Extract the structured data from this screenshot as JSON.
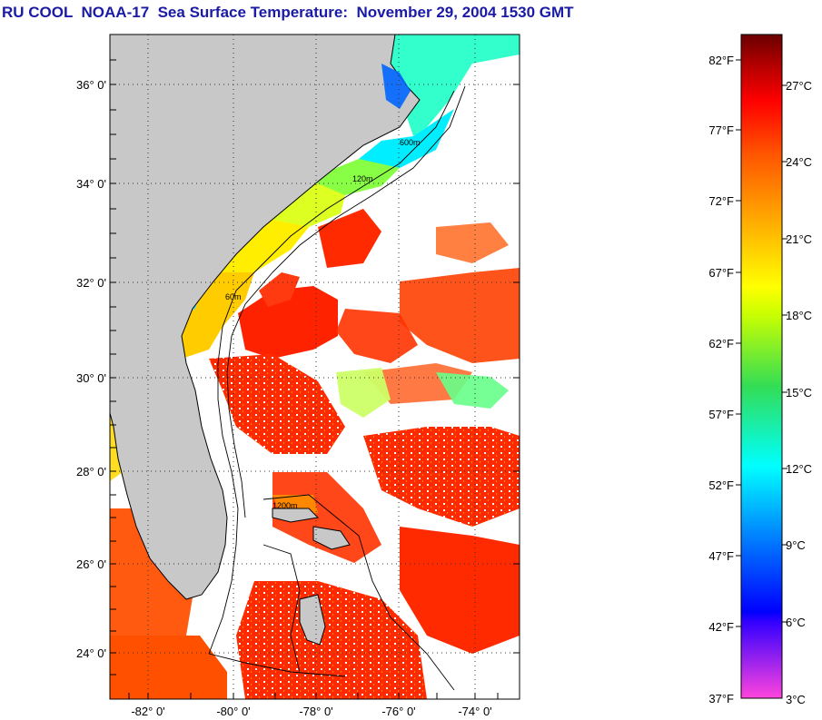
{
  "title": "RU COOL  NOAA-17  Sea Surface Temperature:  November 29, 2004 1530 GMT",
  "map": {
    "lat_labels": [
      "36° 0'",
      "34° 0'",
      "32° 0'",
      "30° 0'",
      "28° 0'",
      "26° 0'",
      "24° 0'"
    ],
    "lon_labels": [
      "-82° 0'",
      "-80° 0'",
      "-78° 0'",
      "-76° 0'",
      "-74° 0'"
    ],
    "contour_labels": [
      "60m",
      "120m",
      "600m",
      "1200m"
    ]
  },
  "colorbar": {
    "fahrenheit": [
      "82°F",
      "77°F",
      "72°F",
      "67°F",
      "62°F",
      "57°F",
      "52°F",
      "47°F",
      "42°F",
      "37°F"
    ],
    "celsius": [
      "27°C",
      "24°C",
      "21°C",
      "18°C",
      "15°C",
      "12°C",
      "9°C",
      "6°C",
      "3°C"
    ],
    "colors": {
      "hot": "#7a0000",
      "red": "#ff0000",
      "orange": "#ff8000",
      "yellow": "#ffff00",
      "green": "#33dd33",
      "cyan": "#00ffff",
      "blue": "#0000ff",
      "magenta": "#ff33cc"
    }
  },
  "colors": {
    "land": "#c8c8c8",
    "nodata": "#ffffff",
    "frame": "#000000",
    "title": "#1a1aa6"
  }
}
